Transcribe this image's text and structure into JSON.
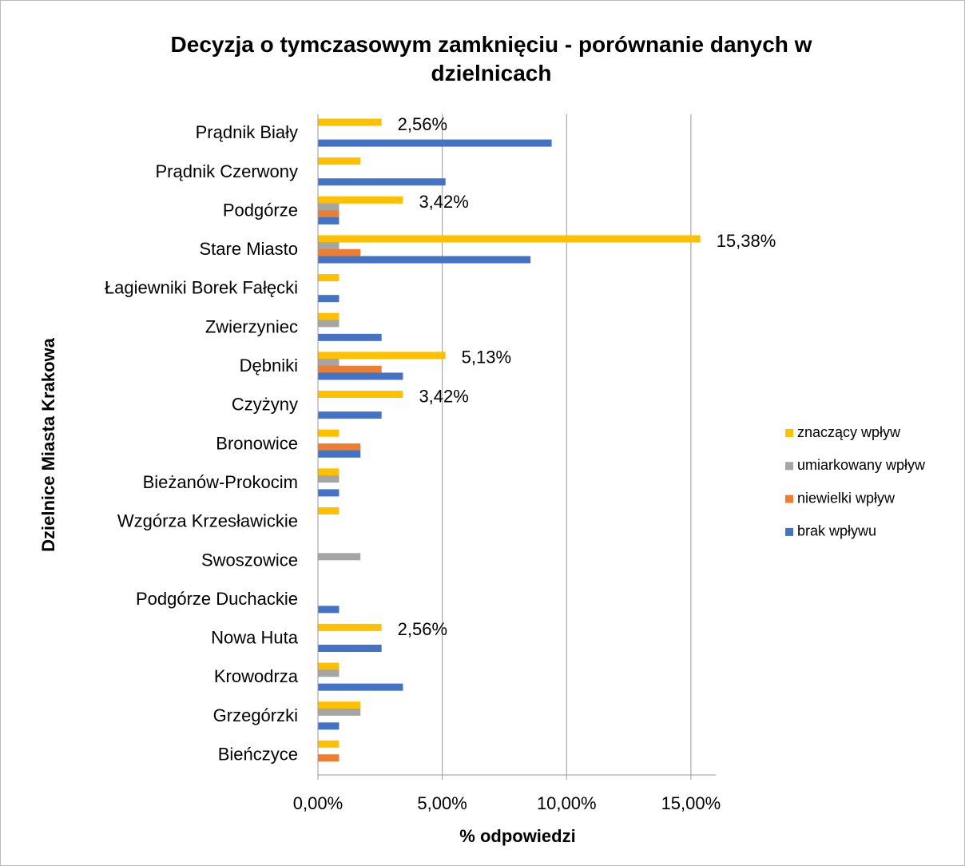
{
  "chart_data": {
    "type": "barh",
    "title": "Decyzja o tymczasowym zamknięciu - porównanie danych w dzielnicach",
    "xlabel": "% odpowiedzi",
    "ylabel": "Dzielnice Miasta Krakowa",
    "categories": [
      "Prądnik Biały",
      "Prądnik Czerwony",
      "Podgórze",
      "Stare Miasto",
      "Łagiewniki Borek Fałęcki",
      "Zwierzyniec",
      "Dębniki",
      "Czyżyny",
      "Bronowice",
      "Bieżanów-Prokocim",
      "Wzgórza Krzesławickie",
      "Swoszowice",
      "Podgórze Duchackie",
      "Nowa Huta",
      "Krowodrza",
      "Grzegórzki",
      "Bieńczyce"
    ],
    "series": [
      {
        "name": "znaczący wpływ",
        "color": "#FFC000",
        "values": [
          2.56,
          1.71,
          3.42,
          15.38,
          0.85,
          0.85,
          5.13,
          3.42,
          0.85,
          0.85,
          0.85,
          0,
          0,
          2.56,
          0.85,
          1.71,
          0.85
        ],
        "value_labels": [
          "2,56%",
          null,
          "3,42%",
          "15,38%",
          null,
          null,
          "5,13%",
          "3,42%",
          null,
          null,
          null,
          null,
          null,
          "2,56%",
          null,
          null,
          null
        ]
      },
      {
        "name": "umiarkowany wpływ",
        "color": "#A5A5A5",
        "values": [
          0,
          0,
          0.85,
          0.85,
          0,
          0.85,
          0.85,
          0,
          0,
          0.85,
          0,
          1.71,
          0,
          0,
          0.85,
          1.71,
          0
        ]
      },
      {
        "name": "niewielki wpływ",
        "color": "#ED7D31",
        "values": [
          0,
          0,
          0.85,
          1.71,
          0,
          0,
          2.56,
          0,
          1.71,
          0,
          0,
          0,
          0,
          0,
          0,
          0,
          0.85
        ]
      },
      {
        "name": "brak wpływu",
        "color": "#4472C4",
        "values": [
          9.4,
          5.13,
          0.85,
          8.55,
          0.85,
          2.56,
          3.42,
          2.56,
          1.71,
          0.85,
          0,
          0,
          0.85,
          2.56,
          3.42,
          0.85,
          0
        ]
      }
    ],
    "xlim": [
      0,
      16
    ],
    "xticks": [
      {
        "value": 0,
        "label": "0,00%"
      },
      {
        "value": 5,
        "label": "5,00%"
      },
      {
        "value": 10,
        "label": "10,00%"
      },
      {
        "value": 15,
        "label": "15,00%"
      }
    ],
    "grid": true,
    "legend": "right"
  }
}
